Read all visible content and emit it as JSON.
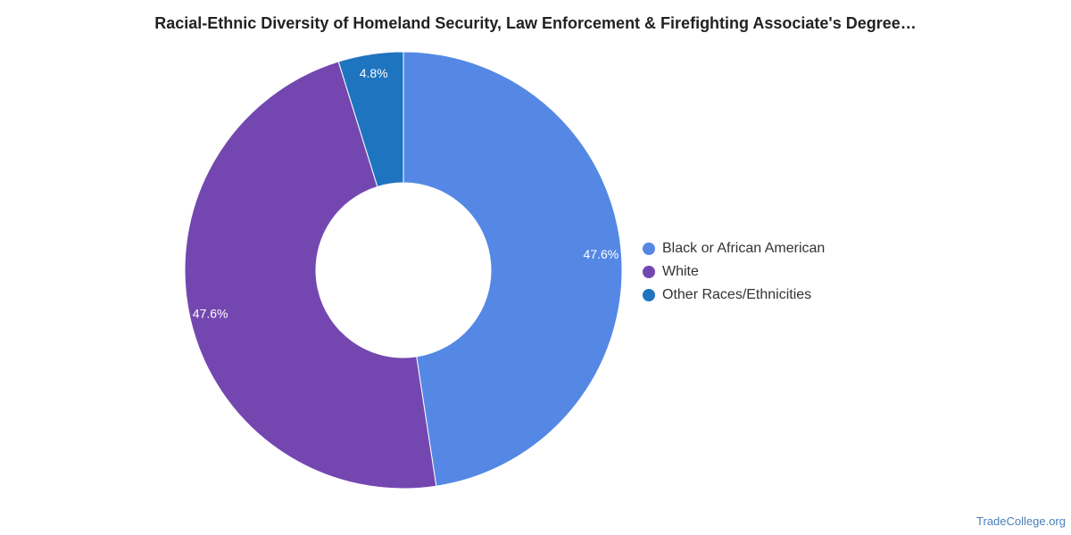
{
  "chart_data": {
    "type": "pie",
    "title": "Racial-Ethnic Diversity of Homeland Security, Law Enforcement & Firefighting Associate's Degree…",
    "donut": true,
    "legend_position": "right",
    "slices": [
      {
        "name": "Black or African American",
        "value": 47.6,
        "label": "47.6%",
        "color": "#5488e4"
      },
      {
        "name": "White",
        "value": 47.6,
        "label": "47.6%",
        "color": "#7447b0"
      },
      {
        "name": "Other Races/Ethnicities",
        "value": 4.8,
        "label": "4.8%",
        "color": "#1f74bf"
      }
    ]
  },
  "source": "TradeCollege.org"
}
